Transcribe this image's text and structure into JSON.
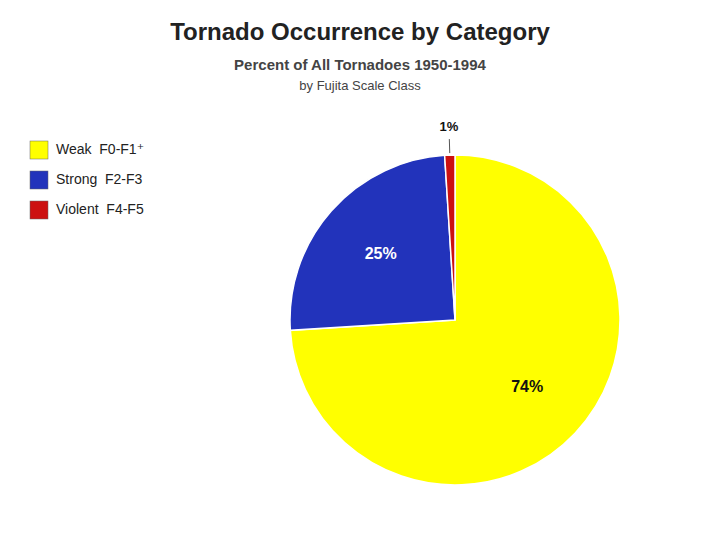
{
  "chart_data": {
    "type": "pie",
    "title": "Tornado Occurrence by Category",
    "subtitle": [
      "Percent of All Tornadoes 1950-1994",
      "by Fujita Scale Class"
    ],
    "categories": [
      "Weak  F0-F1⁺",
      "Strong  F2-F3",
      "Violent  F4-F5"
    ],
    "values": [
      74,
      25,
      1
    ],
    "value_labels": [
      "74%",
      "25%",
      "1%"
    ],
    "colors": [
      "#FFFF00",
      "#2233BB",
      "#CC1111"
    ],
    "data_labels": true,
    "legend": "upper-left"
  }
}
